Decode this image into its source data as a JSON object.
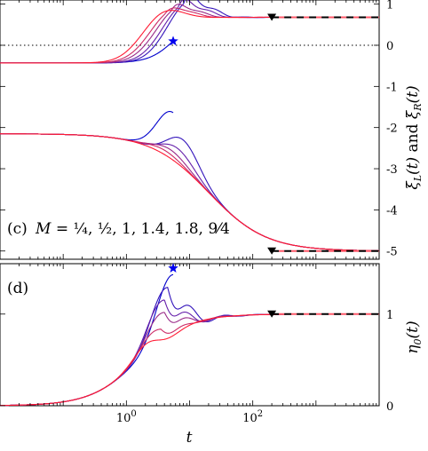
{
  "chart_data": [
    {
      "id": "upper",
      "type": "line",
      "panel_label": "(c)",
      "panel_formula": "M = 1/4, 1/2, 1, 1.4, 1.8, 9/4",
      "legend_placement": "bottom-left",
      "ylabel": "ξ_L(t) and ξ_R(t)",
      "xscale": "log",
      "xlim": [
        0.01,
        10000
      ],
      "ylim": [
        -5.2,
        1.1
      ],
      "yticks": [
        "1",
        "0",
        "-1",
        "-2",
        "-3",
        "-4",
        "-5"
      ],
      "ytick_values": [
        1,
        0,
        -1,
        -2,
        -3,
        -4,
        -5
      ],
      "reference_line_y": 0,
      "colors": [
        "#0000cc",
        "#3314bb",
        "#6620aa",
        "#992a88",
        "#cc2a66",
        "#ff1a33"
      ],
      "steady_state_level": 0.68,
      "lower_steady_state_level": -5.0,
      "asymptote_marker_t": 200,
      "star_marker": {
        "t": 5.5,
        "value": 0.1
      },
      "series_upper_start": -0.43,
      "series_lower_start": -2.15,
      "series": [
        {
          "M": 0.25,
          "peak_t": 5.5,
          "upper_peak": 0.1,
          "lower_peak": -1.05
        },
        {
          "M": 0.5,
          "peak_t": 8.0,
          "upper_peak": 1.05,
          "lower_peak": -1.5
        },
        {
          "M": 1,
          "peak_t": 6.5,
          "upper_peak": 0.95,
          "lower_peak": -1.8
        },
        {
          "M": 1.4,
          "peak_t": 5.0,
          "upper_peak": 0.85,
          "lower_peak": -1.95
        },
        {
          "M": 1.8,
          "peak_t": 4.0,
          "upper_peak": 0.78,
          "lower_peak": -2.05
        },
        {
          "M": 2.25,
          "peak_t": 3.0,
          "upper_peak": 0.72,
          "lower_peak": -2.15
        }
      ]
    },
    {
      "id": "lower",
      "type": "line",
      "panel_label": "(d)",
      "xlabel": "t",
      "ylabel": "η_0(t)",
      "xscale": "log",
      "xlim": [
        0.01,
        10000
      ],
      "ylim": [
        0,
        1.55
      ],
      "xticks": [
        "10^0",
        "10^2"
      ],
      "xtick_values": [
        1,
        100
      ],
      "yticks": [
        "1",
        "0"
      ],
      "ytick_values": [
        1,
        0
      ],
      "steady_state_level": 1.0,
      "asymptote_marker_t": 200,
      "star_marker": {
        "t": 5.5,
        "value": 1.5
      },
      "series": [
        {
          "M": 0.25,
          "peak_t": 5.5,
          "peak": 1.5
        },
        {
          "M": 0.5,
          "peak_t": 4.5,
          "peak": 1.35
        },
        {
          "M": 1,
          "peak_t": 4.0,
          "peak": 1.2
        },
        {
          "M": 1.4,
          "peak_t": 4.0,
          "peak": 1.05
        },
        {
          "M": 1.8,
          "peak_t": 3.5,
          "peak": 0.85
        },
        {
          "M": 2.25,
          "peak_t": 3.0,
          "peak": 0.72
        }
      ]
    }
  ]
}
